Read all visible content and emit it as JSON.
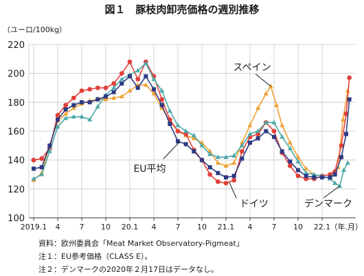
{
  "chart_data": {
    "type": "line",
    "title": "図１　豚枝肉卸売価格の週別推移",
    "unit_label": "（ユーロ/100kg）",
    "ylim": [
      100,
      220
    ],
    "y_ticks": [
      100,
      120,
      140,
      160,
      180,
      200,
      220
    ],
    "x_axis_unit": "（年.月）",
    "x_ticks": [
      {
        "x": 0,
        "label": "2019.1"
      },
      {
        "x": 3,
        "label": "4"
      },
      {
        "x": 6,
        "label": "7"
      },
      {
        "x": 9,
        "label": "10"
      },
      {
        "x": 12,
        "label": "20.1"
      },
      {
        "x": 15,
        "label": "4"
      },
      {
        "x": 18,
        "label": "7"
      },
      {
        "x": 21,
        "label": "10"
      },
      {
        "x": 24,
        "label": "21.1"
      },
      {
        "x": 27,
        "label": "4"
      },
      {
        "x": 30,
        "label": "7"
      },
      {
        "x": 33,
        "label": "10"
      },
      {
        "x": 36,
        "label": "22.1"
      }
    ],
    "x_range": [
      -0.6,
      40.2
    ],
    "grid": true,
    "series": [
      {
        "name": "スペイン",
        "color": "#f0a030",
        "marker": "triangle",
        "label_index": 0,
        "points": [
          [
            0,
            126
          ],
          [
            1,
            131
          ],
          [
            2,
            150
          ],
          [
            3,
            167
          ],
          [
            4,
            172
          ],
          [
            5,
            176
          ],
          [
            6,
            179
          ],
          [
            7,
            181
          ],
          [
            8,
            182
          ],
          [
            9,
            182
          ],
          [
            10,
            183
          ],
          [
            11,
            184
          ],
          [
            12,
            188
          ],
          [
            13,
            192
          ],
          [
            14,
            192
          ],
          [
            15,
            186
          ],
          [
            16,
            176
          ],
          [
            17,
            167
          ],
          [
            18,
            160
          ],
          [
            19,
            157
          ],
          [
            20,
            155
          ],
          [
            21,
            152
          ],
          [
            22,
            146
          ],
          [
            23,
            138
          ],
          [
            24,
            136
          ],
          [
            25,
            138
          ],
          [
            26,
            152
          ],
          [
            27,
            164
          ],
          [
            28,
            176
          ],
          [
            29,
            186
          ],
          [
            29.6,
            191
          ],
          [
            30.3,
            178
          ],
          [
            31,
            164
          ],
          [
            32,
            152
          ],
          [
            33,
            142
          ],
          [
            34,
            134
          ],
          [
            35,
            130
          ],
          [
            36,
            129
          ],
          [
            37,
            130
          ],
          [
            38,
            135
          ],
          [
            38.6,
            168
          ],
          [
            39.2,
            188
          ]
        ]
      },
      {
        "name": "ドイツ",
        "color": "#e0413a",
        "marker": "circle",
        "label_index": 1,
        "points": [
          [
            0,
            140
          ],
          [
            1,
            141
          ],
          [
            2,
            148
          ],
          [
            3,
            171
          ],
          [
            4,
            178
          ],
          [
            5,
            183
          ],
          [
            6,
            188
          ],
          [
            7,
            189
          ],
          [
            8,
            190
          ],
          [
            9,
            190
          ],
          [
            10,
            193
          ],
          [
            11,
            200
          ],
          [
            12,
            208
          ],
          [
            13,
            196
          ],
          [
            14,
            208
          ],
          [
            15,
            198
          ],
          [
            16,
            182
          ],
          [
            17,
            168
          ],
          [
            18,
            160
          ],
          [
            19,
            158
          ],
          [
            20,
            147
          ],
          [
            21,
            140
          ],
          [
            22,
            130
          ],
          [
            23,
            125
          ],
          [
            24,
            124
          ],
          [
            25,
            126
          ],
          [
            26,
            146
          ],
          [
            27,
            156
          ],
          [
            28,
            158
          ],
          [
            29,
            166
          ],
          [
            30,
            160
          ],
          [
            31,
            145
          ],
          [
            32,
            136
          ],
          [
            33,
            129
          ],
          [
            34,
            127
          ],
          [
            35,
            127
          ],
          [
            36,
            129
          ],
          [
            37,
            130
          ],
          [
            37.6,
            132
          ],
          [
            38.4,
            150
          ],
          [
            39,
            172
          ],
          [
            39.4,
            197
          ]
        ]
      },
      {
        "name": "デンマーク",
        "color": "#4aa8a8",
        "marker": "triangle",
        "label_index": 2,
        "points": [
          [
            0,
            127
          ],
          [
            1,
            130
          ],
          [
            2,
            146
          ],
          [
            3,
            163
          ],
          [
            4,
            169
          ],
          [
            5,
            170
          ],
          [
            6,
            170
          ],
          [
            7,
            168
          ],
          [
            8,
            177
          ],
          [
            9,
            185
          ],
          [
            10,
            190
          ],
          [
            11,
            196
          ],
          [
            12,
            199
          ],
          [
            13,
            202
          ],
          [
            14,
            207
          ],
          [
            15,
            196
          ],
          [
            16,
            188
          ],
          [
            17,
            174
          ],
          [
            18,
            164
          ],
          [
            19,
            160
          ],
          [
            20,
            157
          ],
          [
            21,
            150
          ],
          [
            22,
            144
          ],
          [
            23,
            142
          ],
          [
            24,
            142
          ],
          [
            25,
            143
          ],
          [
            26,
            150
          ],
          [
            27,
            158
          ],
          [
            28,
            160
          ],
          [
            29,
            166
          ],
          [
            30,
            166
          ],
          [
            31,
            156
          ],
          [
            32,
            148
          ],
          [
            33,
            139
          ],
          [
            34,
            131
          ],
          [
            35,
            130
          ],
          [
            36,
            129
          ],
          [
            37,
            127
          ],
          [
            37.6,
            124
          ],
          [
            38.2,
            122
          ],
          [
            38.7,
            133
          ],
          [
            39.2,
            138
          ]
        ]
      },
      {
        "name": "EU平均",
        "color": "#2e3a82",
        "marker": "square",
        "label_index": 3,
        "points": [
          [
            0,
            134
          ],
          [
            1,
            135
          ],
          [
            2,
            150
          ],
          [
            3,
            168
          ],
          [
            4,
            175
          ],
          [
            5,
            178
          ],
          [
            6,
            180
          ],
          [
            7,
            180
          ],
          [
            8,
            182
          ],
          [
            9,
            184
          ],
          [
            10,
            187
          ],
          [
            11,
            193
          ],
          [
            12,
            198
          ],
          [
            13,
            190
          ],
          [
            14,
            198
          ],
          [
            15,
            189
          ],
          [
            16,
            178
          ],
          [
            17,
            165
          ],
          [
            18,
            153
          ],
          [
            19,
            151
          ],
          [
            20,
            146
          ],
          [
            21,
            140
          ],
          [
            22,
            135
          ],
          [
            23,
            131
          ],
          [
            24,
            128
          ],
          [
            25,
            129
          ],
          [
            26,
            141
          ],
          [
            27,
            152
          ],
          [
            28,
            155
          ],
          [
            29,
            160
          ],
          [
            30,
            156
          ],
          [
            31,
            146
          ],
          [
            32,
            139
          ],
          [
            33,
            133
          ],
          [
            34,
            129
          ],
          [
            35,
            128
          ],
          [
            36,
            128
          ],
          [
            37,
            128
          ],
          [
            37.6,
            130
          ],
          [
            38.4,
            142
          ],
          [
            39,
            158
          ],
          [
            39.4,
            182
          ]
        ]
      }
    ],
    "series_labels": [
      {
        "text": "スペイン",
        "series": "スペイン"
      },
      {
        "text": "ドイツ",
        "series": "ドイツ"
      },
      {
        "text": "デンマーク",
        "series": "デンマーク"
      },
      {
        "text": "EU平均",
        "series": "EU平均"
      }
    ]
  },
  "notes": {
    "source": "資料：欧州委員会「Meat Market Observatory-Pigmeat」",
    "note1": "注１：EU参考価格（CLASS E）。",
    "note2": "注２：デンマークの2020年２月17日はデータなし。"
  }
}
